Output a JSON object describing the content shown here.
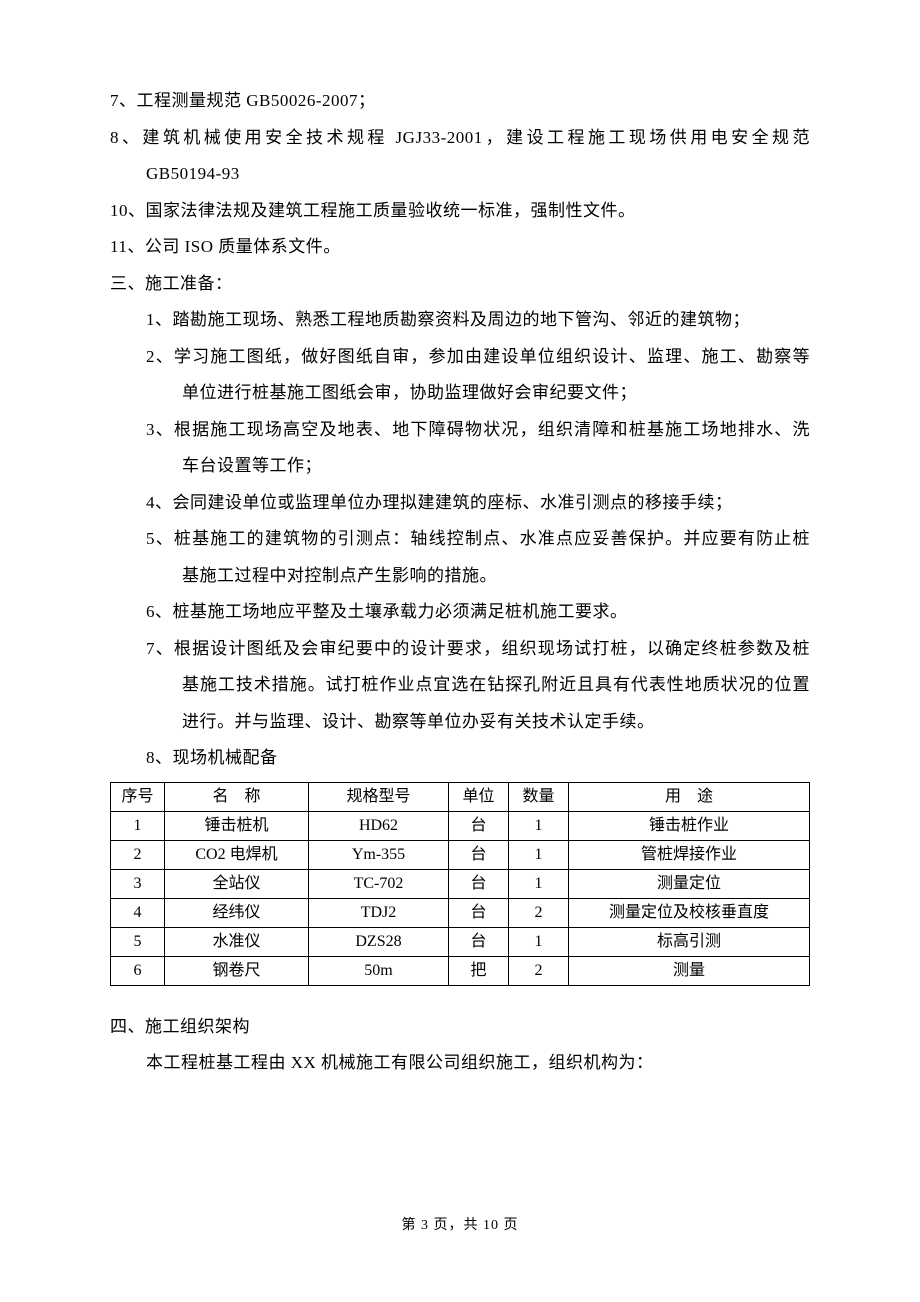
{
  "lines": {
    "l7": "7、工程测量规范 GB50026-2007；",
    "l8a": "8、建筑机械使用安全技术规程 JGJ33-2001，建设工程施工现场供用电安全规范",
    "l8b": "GB50194-93",
    "l10": "10、国家法律法规及建筑工程施工质量验收统一标准，强制性文件。",
    "l11": "11、公司 ISO 质量体系文件。"
  },
  "section3": {
    "title": "三、施工准备：",
    "items": {
      "i1": "1、踏勘施工现场、熟悉工程地质勘察资料及周边的地下管沟、邻近的建筑物；",
      "i2a": "2、学习施工图纸，做好图纸自审，参加由建设单位组织设计、监理、施工、勘察等",
      "i2b": "单位进行桩基施工图纸会审，协助监理做好会审纪要文件；",
      "i3a": "3、根据施工现场高空及地表、地下障碍物状况，组织清障和桩基施工场地排水、洗",
      "i3b": "车台设置等工作；",
      "i4": "4、会同建设单位或监理单位办理拟建建筑的座标、水准引测点的移接手续；",
      "i5a": "5、桩基施工的建筑物的引测点：轴线控制点、水准点应妥善保护。并应要有防止桩",
      "i5b": "基施工过程中对控制点产生影响的措施。",
      "i6": "6、桩基施工场地应平整及土壤承载力必须满足桩机施工要求。",
      "i7a": "7、根据设计图纸及会审纪要中的设计要求，组织现场试打桩，以确定终桩参数及桩",
      "i7b": "基施工技术措施。试打桩作业点宜选在钻探孔附近且具有代表性地质状况的位置",
      "i7c": "进行。并与监理、设计、勘察等单位办妥有关技术认定手续。",
      "i8": "8、现场机械配备"
    }
  },
  "table": {
    "headers": {
      "seq": "序号",
      "name": "名　称",
      "spec": "规格型号",
      "unit": "单位",
      "qty": "数量",
      "use": "用　途"
    },
    "rows": [
      {
        "seq": "1",
        "name": "锤击桩机",
        "spec": "HD62",
        "unit": "台",
        "qty": "1",
        "use": "锤击桩作业"
      },
      {
        "seq": "2",
        "name": "CO2 电焊机",
        "spec": "Ym-355",
        "unit": "台",
        "qty": "1",
        "use": "管桩焊接作业"
      },
      {
        "seq": "3",
        "name": "全站仪",
        "spec": "TC-702",
        "unit": "台",
        "qty": "1",
        "use": "测量定位"
      },
      {
        "seq": "4",
        "name": "经纬仪",
        "spec": "TDJ2",
        "unit": "台",
        "qty": "2",
        "use": "测量定位及校核垂直度"
      },
      {
        "seq": "5",
        "name": "水准仪",
        "spec": "DZS28",
        "unit": "台",
        "qty": "1",
        "use": "标高引测"
      },
      {
        "seq": "6",
        "name": "钢卷尺",
        "spec": "50m",
        "unit": "把",
        "qty": "2",
        "use": "测量"
      }
    ]
  },
  "section4": {
    "title": "四、施工组织架构",
    "body": "本工程桩基工程由 XX 机械施工有限公司组织施工，组织机构为："
  },
  "footer": "第 3 页，共 10 页"
}
